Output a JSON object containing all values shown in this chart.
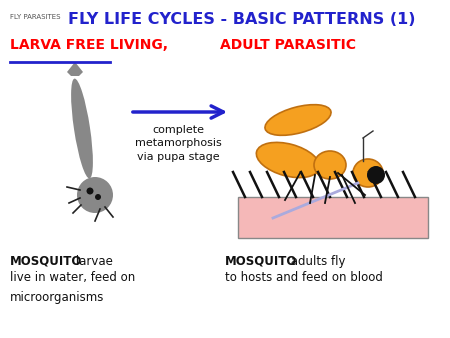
{
  "title": "FLY LIFE CYCLES - BASIC PATTERNS (1)",
  "subtitle_left": "LARVA FREE LIVING,",
  "subtitle_right": "ADULT PARASITIC",
  "small_title": "FLY PARASITES",
  "arrow_text_line1": "complete",
  "arrow_text_line2": "metamorphosis",
  "arrow_text_line3": "via pupa stage",
  "bg_color": "#ffffff",
  "title_color": "#2222cc",
  "subtitle_color": "#ff0000",
  "small_title_color": "#555555",
  "arrow_color": "#2222cc",
  "larva_body_color": "#888888",
  "mosquito_body_color": "#f5a020",
  "mosquito_outline_color": "#c07010",
  "mosquito_eye_color": "#111111",
  "skin_color": "#f5b8b8",
  "skin_edge_color": "#888888",
  "proboscis_color": "#aaaadd",
  "hair_color": "#111111",
  "line_color": "#2222cc"
}
